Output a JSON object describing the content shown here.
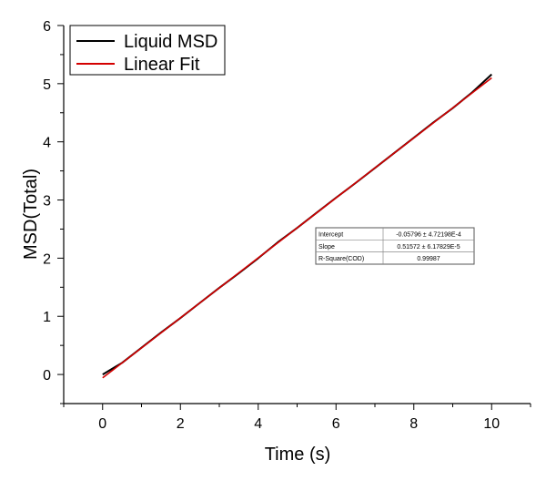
{
  "chart_data": {
    "type": "line",
    "title": "",
    "xlabel": "Time (s)",
    "ylabel": "MSD(Total)",
    "xlim": [
      -1,
      11
    ],
    "ylim": [
      -0.5,
      6
    ],
    "xticks": [
      0,
      2,
      4,
      6,
      8,
      10
    ],
    "xtick_labels": [
      "0",
      "2",
      "4",
      "6",
      "8",
      "10"
    ],
    "yticks": [
      0,
      1,
      2,
      3,
      4,
      5,
      6
    ],
    "ytick_labels": [
      "0",
      "1",
      "2",
      "3",
      "4",
      "5",
      "6"
    ],
    "grid": false,
    "legend_position": "top-left",
    "series": [
      {
        "name": "Liquid MSD",
        "color": "#000000",
        "x": [
          0,
          0.5,
          1,
          1.5,
          2,
          2.5,
          3,
          3.5,
          4,
          4.5,
          5,
          5.5,
          6,
          6.5,
          7,
          7.5,
          8,
          8.5,
          9,
          9.5,
          10
        ],
        "y": [
          0.0,
          0.2,
          0.46,
          0.72,
          0.97,
          1.23,
          1.49,
          1.74,
          2.0,
          2.27,
          2.52,
          2.78,
          3.04,
          3.29,
          3.55,
          3.81,
          4.07,
          4.33,
          4.58,
          4.85,
          5.16
        ]
      },
      {
        "name": "Linear Fit",
        "color": "#d40000",
        "x": [
          0,
          10
        ],
        "y": [
          -0.058,
          5.099
        ]
      }
    ],
    "fit_table": {
      "rows": [
        {
          "label": "Intercept",
          "value": "-0.05796 ± 4.72198E-4"
        },
        {
          "label": "Slope",
          "value": "0.51572 ± 6.17829E-5"
        },
        {
          "label": "R-Square(COD)",
          "value": "0.99987"
        }
      ]
    }
  }
}
